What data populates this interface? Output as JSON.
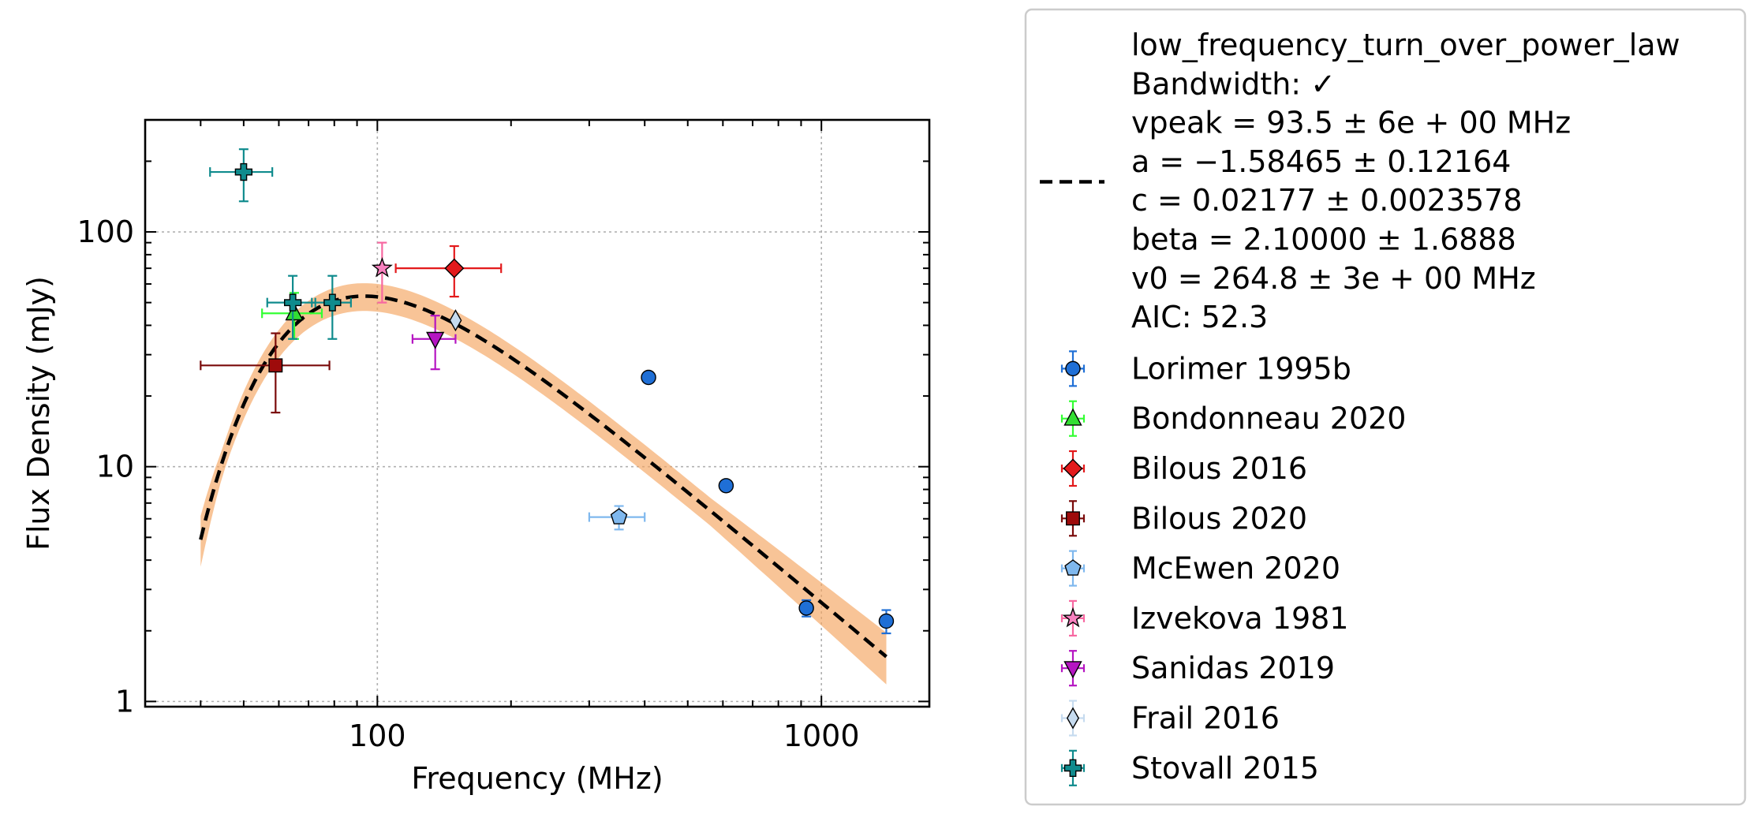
{
  "chart_data": {
    "type": "scatter",
    "xlabel": "Frequency (MHz)",
    "ylabel": "Flux Density (mJy)",
    "xscale": "log",
    "yscale": "log",
    "xlim": [
      30,
      1750
    ],
    "ylim": [
      0.95,
      300
    ],
    "grid": true,
    "legend_position": "outside-right",
    "x_ticks": [
      {
        "value": 100,
        "label": "100"
      },
      {
        "value": 1000,
        "label": "1000"
      }
    ],
    "y_ticks": [
      {
        "value": 1,
        "label": "1"
      },
      {
        "value": 10,
        "label": "10"
      },
      {
        "value": 100,
        "label": "100"
      }
    ],
    "fit": {
      "model": "low_frequency_turn_over_power_law",
      "color": "#000000",
      "band_color": "#f4a460",
      "band_opacity": 0.65,
      "vpeak": 93.5,
      "a": -1.58465,
      "c": 0.02177,
      "beta": 2.1,
      "v0": 264.8,
      "x_range": [
        40,
        1400
      ],
      "legend_lines": [
        "low_frequency_turn_over_power_law",
        "Bandwidth: ✓",
        "vpeak = 93.5 ± 6e + 00 MHz",
        "a = −1.58465 ± 0.12164",
        "c = 0.02177 ± 0.0023578",
        "beta = 2.10000 ± 1.6888",
        "v0 = 264.8 ± 3e + 00 MHz",
        "AIC: 52.3"
      ]
    },
    "series": [
      {
        "name": "Lorimer 1995b",
        "marker": "circle",
        "color": "#1f6fd6",
        "ecolor": "#1f6fd6",
        "points": [
          {
            "x": 408,
            "y": 24,
            "xerr": [
              0,
              0
            ],
            "yerr": [
              0,
              0
            ]
          },
          {
            "x": 610,
            "y": 8.3,
            "xerr": [
              0,
              0
            ],
            "yerr": [
              0,
              0
            ]
          },
          {
            "x": 925,
            "y": 2.5,
            "xerr": [
              0,
              0
            ],
            "yerr": [
              0.2,
              0.2
            ]
          },
          {
            "x": 1400,
            "y": 2.2,
            "xerr": [
              0,
              0
            ],
            "yerr": [
              0.25,
              0.25
            ]
          }
        ]
      },
      {
        "name": "Bondonneau 2020",
        "marker": "triangle-up",
        "color": "#33dd33",
        "ecolor": "#33ff33",
        "points": [
          {
            "x": 65,
            "y": 45,
            "xerr": [
              10,
              10
            ],
            "yerr": [
              10,
              10
            ]
          }
        ]
      },
      {
        "name": "Bilous 2016",
        "marker": "diamond",
        "color": "#e31a1c",
        "ecolor": "#e31a1c",
        "points": [
          {
            "x": 149,
            "y": 70,
            "xerr": [
              39,
              41
            ],
            "yerr": [
              17,
              17
            ]
          }
        ]
      },
      {
        "name": "Bilous 2020",
        "marker": "square",
        "color": "#9e0b0b",
        "ecolor": "#7a0a0a",
        "points": [
          {
            "x": 59,
            "y": 27,
            "xerr": [
              19,
              19
            ],
            "yerr": [
              10,
              10
            ]
          }
        ]
      },
      {
        "name": "McEwen 2020",
        "marker": "pentagon",
        "color": "#7fb8ee",
        "ecolor": "#7fb8ee",
        "points": [
          {
            "x": 350,
            "y": 6.1,
            "xerr": [
              50,
              50
            ],
            "yerr": [
              0.7,
              0.7
            ]
          }
        ]
      },
      {
        "name": "Izvekova 1981",
        "marker": "star",
        "color": "#f781bf",
        "ecolor": "#f768a1",
        "points": [
          {
            "x": 102.5,
            "y": 70,
            "xerr": [
              1.25,
              1.25
            ],
            "yerr": [
              20,
              20
            ]
          }
        ]
      },
      {
        "name": "Sanidas 2019",
        "marker": "triangle-down",
        "color": "#b515c2",
        "ecolor": "#b515c2",
        "points": [
          {
            "x": 135,
            "y": 35,
            "xerr": [
              15,
              15
            ],
            "yerr": [
              9,
              9
            ]
          }
        ]
      },
      {
        "name": "Frail 2016",
        "marker": "thin-diamond",
        "color": "#c6dbef",
        "ecolor": "#c6dbef",
        "points": [
          {
            "x": 150,
            "y": 42,
            "xerr": [
              0,
              0
            ],
            "yerr": [
              0,
              0
            ]
          }
        ]
      },
      {
        "name": "Stovall 2015",
        "marker": "plus",
        "color": "#0f8b8d",
        "ecolor": "#0f8b8d",
        "points": [
          {
            "x": 50,
            "y": 180,
            "xerr": [
              8,
              8
            ],
            "yerr": [
              45,
              45
            ]
          },
          {
            "x": 64.5,
            "y": 50,
            "xerr": [
              8,
              8
            ],
            "yerr": [
              15,
              15
            ]
          },
          {
            "x": 79.2,
            "y": 50,
            "xerr": [
              8,
              8
            ],
            "yerr": [
              15,
              15
            ]
          }
        ]
      }
    ]
  }
}
